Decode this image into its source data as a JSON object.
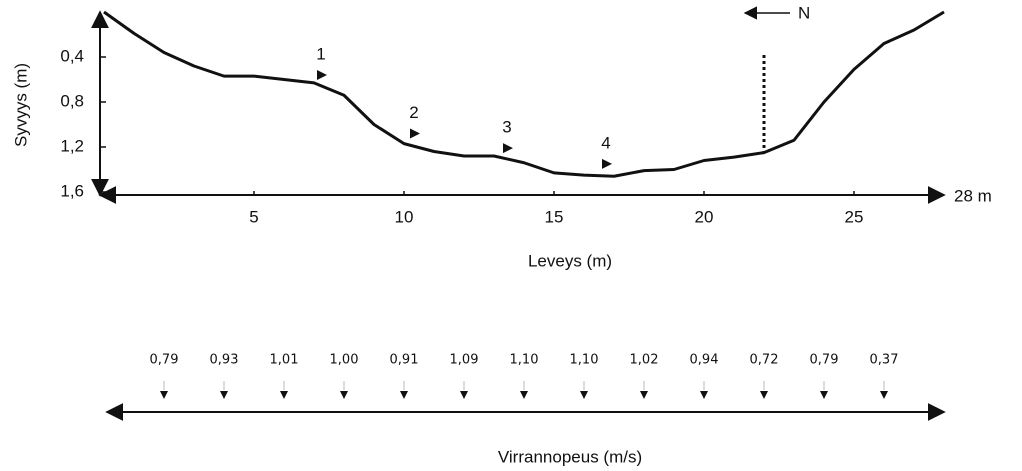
{
  "chart_data": [
    {
      "type": "line",
      "y_label": "Syvyys (m)",
      "x_label": "Leveys (m)",
      "x_end_label": "28 m",
      "north_label": "N",
      "x": [
        0,
        1,
        2,
        3,
        4,
        5,
        6,
        7,
        8,
        9,
        10,
        11,
        12,
        13,
        14,
        15,
        16,
        17,
        18,
        19,
        20,
        21,
        22,
        23,
        24,
        25,
        26,
        27,
        28
      ],
      "values": [
        0,
        0.19,
        0.36,
        0.48,
        0.57,
        0.57,
        0.6,
        0.63,
        0.74,
        1.0,
        1.17,
        1.24,
        1.28,
        1.28,
        1.34,
        1.43,
        1.45,
        1.46,
        1.41,
        1.4,
        1.32,
        1.29,
        1.25,
        1.14,
        0.8,
        0.51,
        0.28,
        0.16,
        0
      ],
      "color": "#111111",
      "xlim": [
        0,
        28
      ],
      "ylim": [
        0,
        1.6
      ],
      "y_inverted": true,
      "xticks": [
        5,
        10,
        15,
        20,
        25
      ],
      "yticks": [
        {
          "value": 0.4,
          "label": "0,4"
        },
        {
          "value": 0.8,
          "label": "0,8"
        },
        {
          "value": 1.2,
          "label": "1,2"
        },
        {
          "value": 1.6,
          "label": "1,6"
        }
      ],
      "reference_line_x": 22,
      "annotations": [
        {
          "text": "1",
          "x": 7.1,
          "y": 0.56
        },
        {
          "text": "2",
          "x": 10.2,
          "y": 1.08
        },
        {
          "text": "3",
          "x": 13.3,
          "y": 1.21
        },
        {
          "text": "4",
          "x": 16.6,
          "y": 1.35
        }
      ]
    },
    {
      "type": "strip",
      "x_label": "Virrannopeus (m/s)",
      "x": [
        2,
        4,
        6,
        8,
        10,
        12,
        14,
        16,
        18,
        20,
        22,
        24,
        26
      ],
      "values": [
        0.79,
        0.93,
        1.01,
        1.0,
        0.91,
        1.09,
        1.1,
        1.1,
        1.02,
        0.94,
        0.72,
        0.79,
        0.37
      ],
      "value_labels": [
        "0,79",
        "0,93",
        "1,01",
        "1,00",
        "0,91",
        "1,09",
        "1,10",
        "1,10",
        "1,02",
        "0,94",
        "0,72",
        "0,79",
        "0,37"
      ],
      "xlim": [
        0,
        28
      ]
    }
  ]
}
